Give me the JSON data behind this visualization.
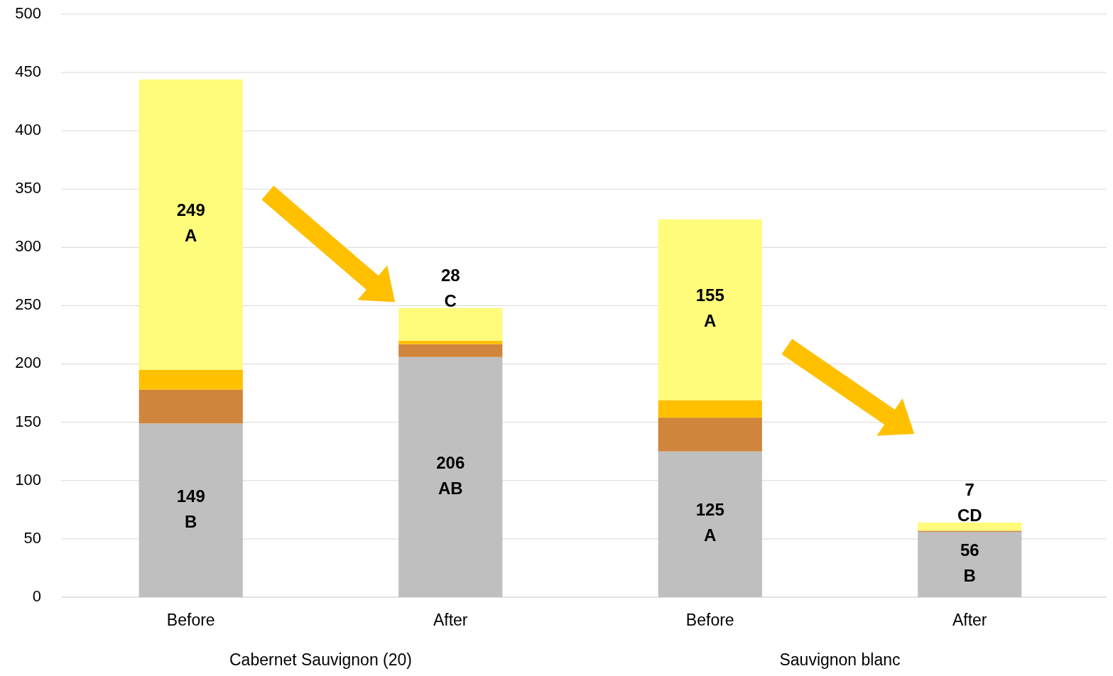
{
  "chart_data": {
    "type": "bar",
    "stacked": true,
    "categories": [
      "Before",
      "After",
      "Before",
      "After"
    ],
    "series": [
      {
        "color": "#bfbfbf",
        "values": [
          149,
          206,
          125,
          56
        ],
        "value_labels": [
          "149\nB",
          "206\nAB",
          "125\nA",
          "56\nB"
        ]
      },
      {
        "color": "#cf853c",
        "values": [
          29,
          11,
          29,
          1
        ]
      },
      {
        "color": "#ffc000",
        "values": [
          17,
          3,
          15,
          null
        ]
      },
      {
        "color": "#fffb7b",
        "values": [
          249,
          28,
          155,
          7
        ],
        "value_labels": [
          "249\nA",
          "28\nC",
          "155\nA",
          "7\nCD"
        ]
      }
    ],
    "ylim": [
      0,
      500
    ],
    "yticks": [
      0,
      50,
      100,
      150,
      200,
      250,
      300,
      350,
      400,
      450,
      500
    ],
    "grid": "y",
    "annotations": [
      "Cabernet Sauvignon (20)",
      "Sauvignon blanc"
    ]
  }
}
